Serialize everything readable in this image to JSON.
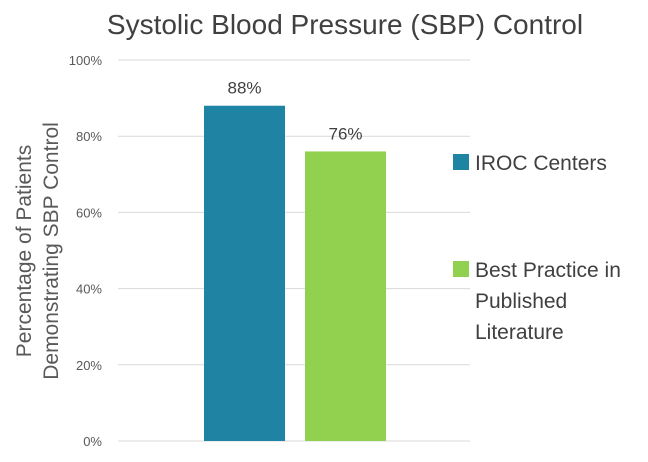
{
  "chart_data": {
    "type": "bar",
    "title": "Systolic Blood Pressure (SBP) Control",
    "ylabel_lines": [
      "Percentage of Patients",
      "Demonstrating SBP Control"
    ],
    "xlabel": "",
    "ylim": [
      0,
      100
    ],
    "yticks": [
      0,
      20,
      40,
      60,
      80,
      100
    ],
    "ytick_labels": [
      "0%",
      "20%",
      "40%",
      "60%",
      "80%",
      "100%"
    ],
    "grid": true,
    "legend_position": "right",
    "series": [
      {
        "name_lines": [
          "IROC Centers"
        ],
        "value": 88,
        "data_label": "88%",
        "color": "#1f84a3"
      },
      {
        "name_lines": [
          "Best Practice in",
          "Published",
          "Literature"
        ],
        "value": 76,
        "data_label": "76%",
        "color": "#92d050"
      }
    ]
  }
}
